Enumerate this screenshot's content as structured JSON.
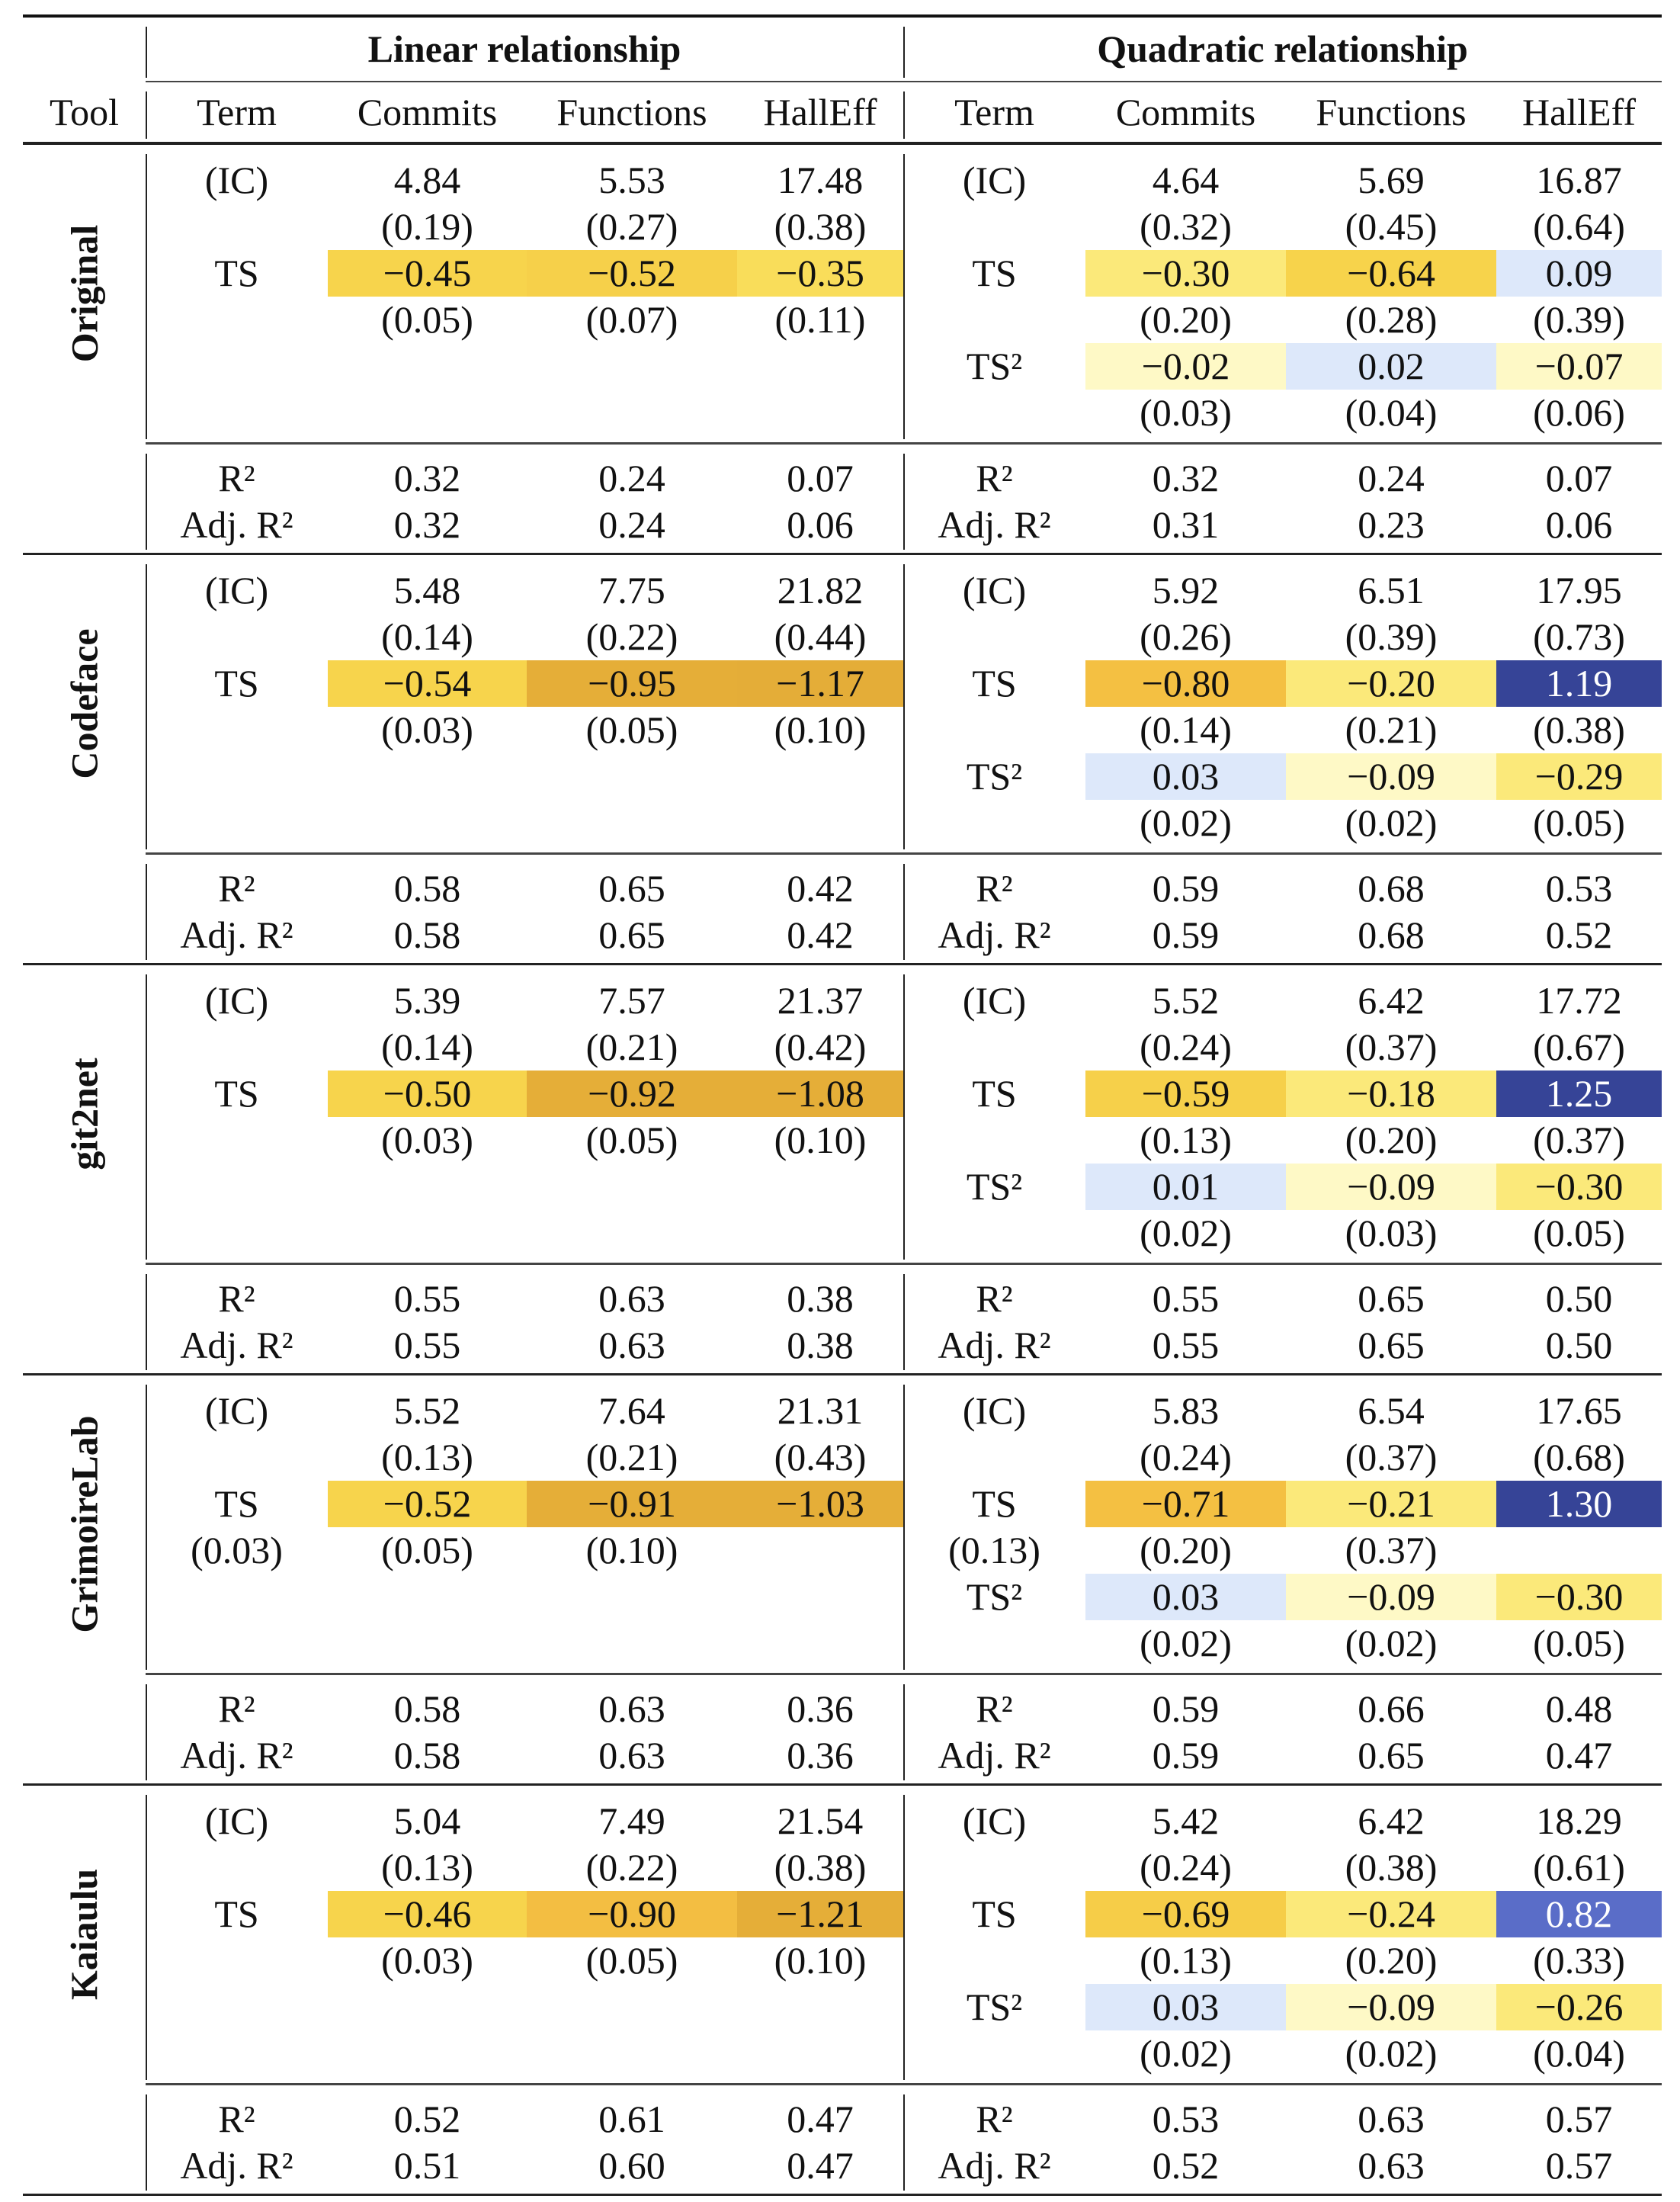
{
  "header": {
    "groups": [
      "Linear relationship",
      "Quadratic relationship"
    ],
    "tool": "Tool",
    "columns": [
      "Term",
      "Commits",
      "Functions",
      "HallEff"
    ]
  },
  "colors": {
    "pale_yellow": "#FEF9C6",
    "yellow": "#FBE97A",
    "gold": "#F7D44C",
    "orange": "#F4C042",
    "dark_orange": "#E5AE38",
    "light_blue": "#DDE8FA",
    "medium_blue": "#5A6DC8",
    "dark_blue": "#364497"
  },
  "blocks": [
    {
      "tool": "Original",
      "coef_rows": [
        {
          "lt": "(IC)",
          "l": [
            "4.84",
            "5.53",
            "17.48"
          ],
          "qt": "(IC)",
          "q": [
            "4.64",
            "5.69",
            "16.87"
          ]
        },
        {
          "lt": "",
          "l": [
            "(0.19)",
            "(0.27)",
            "(0.38)"
          ],
          "qt": "",
          "q": [
            "(0.32)",
            "(0.45)",
            "(0.64)"
          ]
        },
        {
          "lt": "TS",
          "l": [
            "−0.45",
            "−0.52",
            "−0.35"
          ],
          "lbg": [
            "#F7D44C",
            "#F6D04A",
            "#F9DD5A"
          ],
          "qt": "TS",
          "q": [
            "−0.30",
            "−0.64",
            "0.09"
          ],
          "qbg": [
            "#FBE97A",
            "#F7D34B",
            "#DDE8FA"
          ]
        },
        {
          "lt": "",
          "l": [
            "(0.05)",
            "(0.07)",
            "(0.11)"
          ],
          "qt": "",
          "q": [
            "(0.20)",
            "(0.28)",
            "(0.39)"
          ]
        },
        {
          "lt": "",
          "l": [
            "",
            "",
            ""
          ],
          "qt": "TS²",
          "q": [
            "−0.02",
            "0.02",
            "−0.07"
          ],
          "qbg": [
            "#FEF9C6",
            "#DDE8FA",
            "#FEF9C6"
          ]
        },
        {
          "lt": "",
          "l": [
            "",
            "",
            ""
          ],
          "qt": "",
          "q": [
            "(0.03)",
            "(0.04)",
            "(0.06)"
          ]
        }
      ],
      "fit_rows": [
        {
          "lt": "R²",
          "l": [
            "0.32",
            "0.24",
            "0.07"
          ],
          "qt": "R²",
          "q": [
            "0.32",
            "0.24",
            "0.07"
          ]
        },
        {
          "lt": "Adj. R²",
          "l": [
            "0.32",
            "0.24",
            "0.06"
          ],
          "qt": "Adj. R²",
          "q": [
            "0.31",
            "0.23",
            "0.06"
          ]
        }
      ]
    },
    {
      "tool": "Codeface",
      "coef_rows": [
        {
          "lt": "(IC)",
          "l": [
            "5.48",
            "7.75",
            "21.82"
          ],
          "qt": "(IC)",
          "q": [
            "5.92",
            "6.51",
            "17.95"
          ]
        },
        {
          "lt": "",
          "l": [
            "(0.14)",
            "(0.22)",
            "(0.44)"
          ],
          "qt": "",
          "q": [
            "(0.26)",
            "(0.39)",
            "(0.73)"
          ]
        },
        {
          "lt": "TS",
          "l": [
            "−0.54",
            "−0.95",
            "−1.17"
          ],
          "lbg": [
            "#F7D44C",
            "#E5AE38",
            "#E4AD38"
          ],
          "qt": "TS",
          "q": [
            "−0.80",
            "−0.20",
            "1.19"
          ],
          "qbg": [
            "#F4C042",
            "#FBE97A",
            "#364497"
          ],
          "qfg": [
            "",
            "",
            "#FFFFFF"
          ]
        },
        {
          "lt": "",
          "l": [
            "(0.03)",
            "(0.05)",
            "(0.10)"
          ],
          "qt": "",
          "q": [
            "(0.14)",
            "(0.21)",
            "(0.38)"
          ]
        },
        {
          "lt": "",
          "l": [
            "",
            "",
            ""
          ],
          "qt": "TS²",
          "q": [
            "0.03",
            "−0.09",
            "−0.29"
          ],
          "qbg": [
            "#DDE8FA",
            "#FEF9C6",
            "#FBE97A"
          ]
        },
        {
          "lt": "",
          "l": [
            "",
            "",
            ""
          ],
          "qt": "",
          "q": [
            "(0.02)",
            "(0.02)",
            "(0.05)"
          ]
        }
      ],
      "fit_rows": [
        {
          "lt": "R²",
          "l": [
            "0.58",
            "0.65",
            "0.42"
          ],
          "qt": "R²",
          "q": [
            "0.59",
            "0.68",
            "0.53"
          ]
        },
        {
          "lt": "Adj. R²",
          "l": [
            "0.58",
            "0.65",
            "0.42"
          ],
          "qt": "Adj. R²",
          "q": [
            "0.59",
            "0.68",
            "0.52"
          ]
        }
      ]
    },
    {
      "tool": "git2net",
      "coef_rows": [
        {
          "lt": "(IC)",
          "l": [
            "5.39",
            "7.57",
            "21.37"
          ],
          "qt": "(IC)",
          "q": [
            "5.52",
            "6.42",
            "17.72"
          ]
        },
        {
          "lt": "",
          "l": [
            "(0.14)",
            "(0.21)",
            "(0.42)"
          ],
          "qt": "",
          "q": [
            "(0.24)",
            "(0.37)",
            "(0.67)"
          ]
        },
        {
          "lt": "TS",
          "l": [
            "−0.50",
            "−0.92",
            "−1.08"
          ],
          "lbg": [
            "#F7D44C",
            "#E5AE38",
            "#E5AE38"
          ],
          "qt": "TS",
          "q": [
            "−0.59",
            "−0.18",
            "1.25"
          ],
          "qbg": [
            "#F6D04A",
            "#FBE97A",
            "#364497"
          ],
          "qfg": [
            "",
            "",
            "#FFFFFF"
          ]
        },
        {
          "lt": "",
          "l": [
            "(0.03)",
            "(0.05)",
            "(0.10)"
          ],
          "qt": "",
          "q": [
            "(0.13)",
            "(0.20)",
            "(0.37)"
          ]
        },
        {
          "lt": "",
          "l": [
            "",
            "",
            ""
          ],
          "qt": "TS²",
          "q": [
            "0.01",
            "−0.09",
            "−0.30"
          ],
          "qbg": [
            "#DDE8FA",
            "#FEF9C6",
            "#FBE97A"
          ]
        },
        {
          "lt": "",
          "l": [
            "",
            "",
            ""
          ],
          "qt": "",
          "q": [
            "(0.02)",
            "(0.03)",
            "(0.05)"
          ]
        }
      ],
      "fit_rows": [
        {
          "lt": "R²",
          "l": [
            "0.55",
            "0.63",
            "0.38"
          ],
          "qt": "R²",
          "q": [
            "0.55",
            "0.65",
            "0.50"
          ]
        },
        {
          "lt": "Adj. R²",
          "l": [
            "0.55",
            "0.63",
            "0.38"
          ],
          "qt": "Adj. R²",
          "q": [
            "0.55",
            "0.65",
            "0.50"
          ]
        }
      ]
    },
    {
      "tool": "GrimoireLab",
      "coef_rows": [
        {
          "lt": "(IC)",
          "l": [
            "5.52",
            "7.64",
            "21.31"
          ],
          "qt": "(IC)",
          "q": [
            "5.83",
            "6.54",
            "17.65"
          ]
        },
        {
          "lt": "",
          "l": [
            "(0.13)",
            "(0.21)",
            "(0.43)"
          ],
          "qt": "",
          "q": [
            "(0.24)",
            "(0.37)",
            "(0.68)"
          ]
        },
        {
          "lt": "TS",
          "l": [
            "−0.52",
            "−0.91",
            "−1.03"
          ],
          "lbg": [
            "#F7D44C",
            "#E5AE38",
            "#E5AE38"
          ],
          "qt": "TS",
          "q": [
            "−0.71",
            "−0.21",
            "1.30"
          ],
          "qbg": [
            "#F4C042",
            "#FBE97A",
            "#364497"
          ],
          "qfg": [
            "",
            "",
            "#FFFFFF"
          ]
        },
        {
          "lt": "(0.03)",
          "l": [
            "(0.05)",
            "(0.10)",
            ""
          ],
          "qt": "(0.13)",
          "q": [
            "(0.20)",
            "(0.37)",
            ""
          ]
        },
        {
          "lt": "",
          "l": [
            "",
            "",
            ""
          ],
          "qt": "TS²",
          "q": [
            "0.03",
            "−0.09",
            "−0.30"
          ],
          "qbg": [
            "#DDE8FA",
            "#FEF9C6",
            "#FBE97A"
          ]
        },
        {
          "lt": "",
          "l": [
            "",
            "",
            ""
          ],
          "qt": "",
          "q": [
            "(0.02)",
            "(0.02)",
            "(0.05)"
          ]
        }
      ],
      "fit_rows": [
        {
          "lt": "R²",
          "l": [
            "0.58",
            "0.63",
            "0.36"
          ],
          "qt": "R²",
          "q": [
            "0.59",
            "0.66",
            "0.48"
          ]
        },
        {
          "lt": "Adj. R²",
          "l": [
            "0.58",
            "0.63",
            "0.36"
          ],
          "qt": "Adj. R²",
          "q": [
            "0.59",
            "0.65",
            "0.47"
          ]
        }
      ]
    },
    {
      "tool": "Kaiaulu",
      "coef_rows": [
        {
          "lt": "(IC)",
          "l": [
            "5.04",
            "7.49",
            "21.54"
          ],
          "qt": "(IC)",
          "q": [
            "5.42",
            "6.42",
            "18.29"
          ]
        },
        {
          "lt": "",
          "l": [
            "(0.13)",
            "(0.22)",
            "(0.38)"
          ],
          "qt": "",
          "q": [
            "(0.24)",
            "(0.38)",
            "(0.61)"
          ]
        },
        {
          "lt": "TS",
          "l": [
            "−0.46",
            "−0.90",
            "−1.21"
          ],
          "lbg": [
            "#F7D44C",
            "#F3BE42",
            "#E5AE38"
          ],
          "qt": "TS",
          "q": [
            "−0.69",
            "−0.24",
            "0.82"
          ],
          "qbg": [
            "#F6CD48",
            "#FBE97A",
            "#5A6DC8"
          ],
          "qfg": [
            "",
            "",
            "#FFFFFF"
          ]
        },
        {
          "lt": "",
          "l": [
            "(0.03)",
            "(0.05)",
            "(0.10)"
          ],
          "qt": "",
          "q": [
            "(0.13)",
            "(0.20)",
            "(0.33)"
          ]
        },
        {
          "lt": "",
          "l": [
            "",
            "",
            ""
          ],
          "qt": "TS²",
          "q": [
            "0.03",
            "−0.09",
            "−0.26"
          ],
          "qbg": [
            "#DDE8FA",
            "#FEF9C6",
            "#FBE97A"
          ]
        },
        {
          "lt": "",
          "l": [
            "",
            "",
            ""
          ],
          "qt": "",
          "q": [
            "(0.02)",
            "(0.02)",
            "(0.04)"
          ]
        }
      ],
      "fit_rows": [
        {
          "lt": "R²",
          "l": [
            "0.52",
            "0.61",
            "0.47"
          ],
          "qt": "R²",
          "q": [
            "0.53",
            "0.63",
            "0.57"
          ]
        },
        {
          "lt": "Adj. R²",
          "l": [
            "0.51",
            "0.60",
            "0.47"
          ],
          "qt": "Adj. R²",
          "q": [
            "0.52",
            "0.63",
            "0.57"
          ]
        }
      ]
    }
  ]
}
